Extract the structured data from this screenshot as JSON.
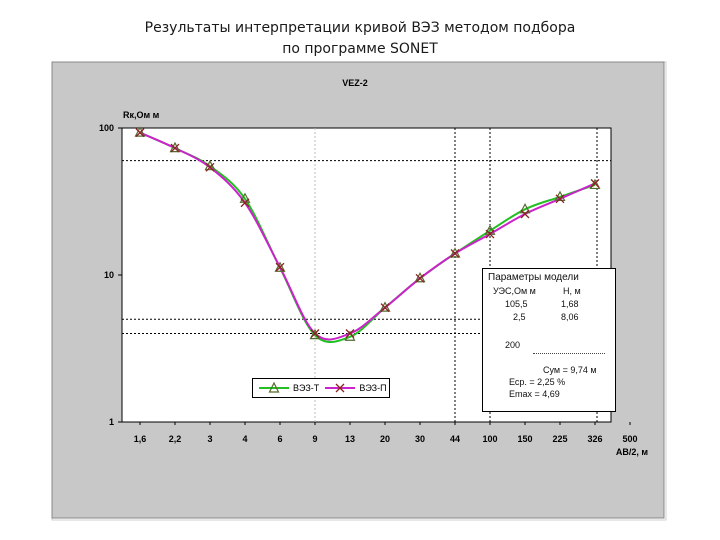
{
  "slide": {
    "title_line1": "Результаты интерпретации кривой ВЭЗ методом подбора",
    "title_line2": "по программе SONET"
  },
  "chart_data": {
    "type": "line",
    "title": "VEZ-2",
    "ylabel": "Rк,Ом м",
    "xlabel": "AB/2, м",
    "yscale": "log",
    "ylim": [
      1,
      100
    ],
    "y_ticks": [
      "100",
      "10",
      "1"
    ],
    "x_ticks": [
      "1,6",
      "2,2",
      "3",
      "4",
      "6",
      "9",
      "13",
      "20",
      "30",
      "44",
      "100",
      "150",
      "225",
      "326",
      "500"
    ],
    "series": [
      {
        "name": "ВЭЗ-Т",
        "color": "#22c022",
        "marker": "triangle",
        "x_index": [
          0,
          1,
          2,
          3,
          4,
          5,
          6,
          7,
          8,
          9,
          10,
          11,
          12,
          13
        ],
        "values": [
          93,
          73,
          55,
          33,
          11.2,
          3.9,
          3.8,
          6.0,
          9.5,
          14.0,
          20.0,
          28.0,
          34.0,
          41.0
        ]
      },
      {
        "name": "ВЭЗ-П",
        "color": "#8b2323",
        "line_color": "#cc22cc",
        "marker": "x",
        "x_index": [
          0,
          1,
          2,
          3,
          4,
          5,
          6,
          7,
          8,
          9,
          10,
          11,
          12,
          13
        ],
        "values": [
          93,
          73,
          54,
          31,
          11.3,
          4.0,
          4.0,
          6.0,
          9.5,
          14.0,
          19.0,
          26.0,
          33.0,
          42.0
        ]
      }
    ],
    "reference_lines_y": [
      60,
      5,
      4
    ],
    "dark_vertical_lines_x_index": [
      9,
      10
    ]
  },
  "model_params": {
    "title": "Параметры модели",
    "col1_header": "УЭС,Ом м",
    "col2_header": "Н, м",
    "rows": [
      {
        "res": "105,5",
        "h": "1,68"
      },
      {
        "res": "2,5",
        "h": "8,06"
      },
      {
        "res": "200",
        "h": ""
      }
    ],
    "sum": "Сум = 9,74 м",
    "e_avg": "Еср. = 2,25 %",
    "e_max": "Еmax = 4,69"
  }
}
